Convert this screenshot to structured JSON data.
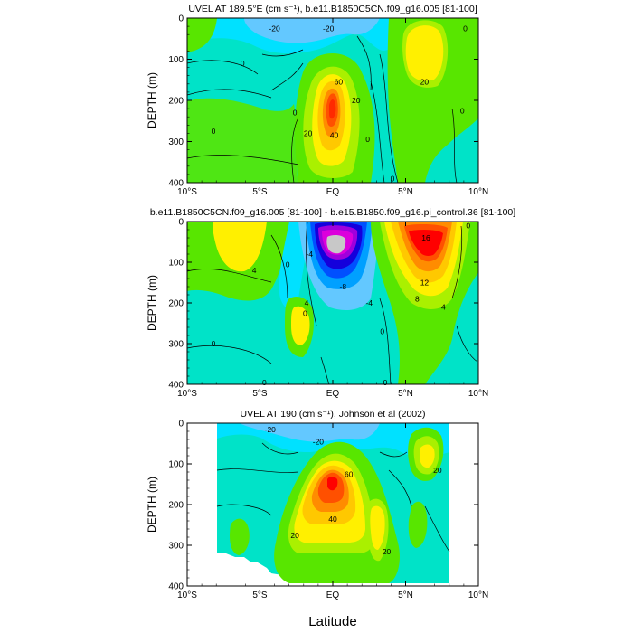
{
  "figure": {
    "xlabel": "Latitude"
  },
  "chart_data": [
    {
      "type": "heatmap",
      "title": "UVEL AT 189.5°E (cm s⁻¹), b.e11.B1850C5CN.f09_g16.005 [81-100]",
      "ylabel": "DEPTH (m)",
      "x_ticks": [
        "10°S",
        "5°S",
        "EQ",
        "5°N",
        "10°N"
      ],
      "y_ticks": [
        "0",
        "100",
        "200",
        "300",
        "400"
      ],
      "xlim": [
        -10,
        10
      ],
      "ylim": [
        400,
        0
      ],
      "contour_labels": [
        {
          "text": "-20",
          "lat": -4.0,
          "depth": 25
        },
        {
          "text": "-20",
          "lat": -0.3,
          "depth": 25
        },
        {
          "text": "0",
          "lat": -6.2,
          "depth": 110
        },
        {
          "text": "0",
          "lat": -8.2,
          "depth": 275
        },
        {
          "text": "0",
          "lat": -2.6,
          "depth": 230
        },
        {
          "text": "0",
          "lat": 2.4,
          "depth": 295
        },
        {
          "text": "0",
          "lat": 4.1,
          "depth": 390
        },
        {
          "text": "0",
          "lat": 8.9,
          "depth": 225
        },
        {
          "text": "0",
          "lat": 9.1,
          "depth": 25
        },
        {
          "text": "20",
          "lat": -1.7,
          "depth": 280
        },
        {
          "text": "20",
          "lat": 1.6,
          "depth": 200
        },
        {
          "text": "40",
          "lat": 0.1,
          "depth": 285
        },
        {
          "text": "60",
          "lat": 0.4,
          "depth": 155
        },
        {
          "text": "20",
          "lat": 6.3,
          "depth": 155
        }
      ]
    },
    {
      "type": "heatmap",
      "title": "b.e11.B1850C5CN.f09_g16.005 [81-100] - b.e15.B1850.f09_g16.pi_control.36 [81-100]",
      "ylabel": "DEPTH (m)",
      "x_ticks": [
        "10°S",
        "5°S",
        "EQ",
        "5°N",
        "10°N"
      ],
      "y_ticks": [
        "0",
        "100",
        "200",
        "300",
        "400"
      ],
      "xlim": [
        -10,
        10
      ],
      "ylim": [
        400,
        0
      ],
      "contour_labels": [
        {
          "text": "4",
          "lat": -5.4,
          "depth": 120
        },
        {
          "text": "0",
          "lat": -3.1,
          "depth": 105
        },
        {
          "text": "0",
          "lat": -8.2,
          "depth": 300
        },
        {
          "text": "0",
          "lat": -4.7,
          "depth": 395
        },
        {
          "text": "-4",
          "lat": -1.6,
          "depth": 80
        },
        {
          "text": "4",
          "lat": -1.8,
          "depth": 200
        },
        {
          "text": "0",
          "lat": -1.9,
          "depth": 225
        },
        {
          "text": "-8",
          "lat": 0.7,
          "depth": 160
        },
        {
          "text": "-4",
          "lat": 2.5,
          "depth": 200
        },
        {
          "text": "0",
          "lat": 3.4,
          "depth": 270
        },
        {
          "text": "16",
          "lat": 6.4,
          "depth": 40
        },
        {
          "text": "12",
          "lat": 6.3,
          "depth": 150
        },
        {
          "text": "8",
          "lat": 5.8,
          "depth": 190
        },
        {
          "text": "4",
          "lat": 7.6,
          "depth": 210
        },
        {
          "text": "0",
          "lat": 9.3,
          "depth": 10
        },
        {
          "text": "0",
          "lat": 3.6,
          "depth": 395
        }
      ]
    },
    {
      "type": "heatmap",
      "title": "UVEL AT 190 (cm s⁻¹), Johnson et al (2002)",
      "ylabel": "DEPTH (m)",
      "x_ticks": [
        "10°S",
        "5°S",
        "EQ",
        "5°N",
        "10°N"
      ],
      "y_ticks": [
        "0",
        "100",
        "200",
        "300",
        "400"
      ],
      "xlim": [
        -10,
        10
      ],
      "ylim": [
        400,
        0
      ],
      "contour_labels": [
        {
          "text": "-20",
          "lat": -4.3,
          "depth": 15
        },
        {
          "text": "-20",
          "lat": -1.0,
          "depth": 45
        },
        {
          "text": "20",
          "lat": -2.6,
          "depth": 275
        },
        {
          "text": "40",
          "lat": 0.0,
          "depth": 235
        },
        {
          "text": "60",
          "lat": 1.1,
          "depth": 125
        },
        {
          "text": "20",
          "lat": 3.7,
          "depth": 315
        },
        {
          "text": "20",
          "lat": 7.2,
          "depth": 115
        }
      ]
    }
  ]
}
